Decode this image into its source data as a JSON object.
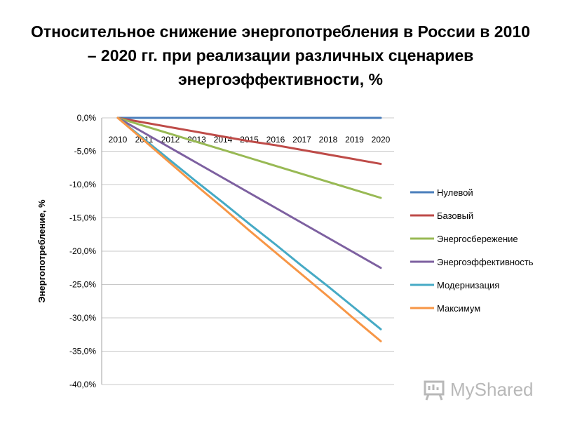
{
  "chart_data": {
    "type": "line",
    "title": "Относительное снижение энергопотребления в России в 2010 – 2020 гг. при реализации различных сценариев энергоэффективности, %",
    "xlabel": "",
    "ylabel": "Энергопотребление, %",
    "categories": [
      "2010",
      "2011",
      "2012",
      "2013",
      "2014",
      "2015",
      "2016",
      "2017",
      "2018",
      "2019",
      "2020"
    ],
    "ylim": [
      -40,
      0
    ],
    "yticks": [
      0,
      -5,
      -10,
      -15,
      -20,
      -25,
      -30,
      -35,
      -40
    ],
    "ytick_labels": [
      "0,0%",
      "-5,0%",
      "-10,0%",
      "-15,0%",
      "-20,0%",
      "-25,0%",
      "-30,0%",
      "-35,0%",
      "-40,0%"
    ],
    "grid": true,
    "legend_position": "right",
    "series": [
      {
        "name": "Нулевой",
        "color": "#4a7ebb",
        "values": [
          0,
          0,
          0,
          0,
          0,
          0,
          0,
          0,
          0,
          0,
          0
        ]
      },
      {
        "name": "Базовый",
        "color": "#be4b48",
        "values": [
          0,
          -0.7,
          -1.4,
          -2.1,
          -2.8,
          -3.5,
          -4.1,
          -4.8,
          -5.5,
          -6.2,
          -6.9
        ]
      },
      {
        "name": "Энергосбережение",
        "color": "#98b954",
        "values": [
          0,
          -1.2,
          -2.4,
          -3.6,
          -4.8,
          -6.0,
          -7.2,
          -8.4,
          -9.6,
          -10.8,
          -12.0
        ]
      },
      {
        "name": "Энергоэффективность",
        "color": "#7d60a0",
        "values": [
          0,
          -2.25,
          -4.5,
          -6.75,
          -9.0,
          -11.25,
          -13.5,
          -15.75,
          -18.0,
          -20.25,
          -22.5
        ]
      },
      {
        "name": "Модернизация",
        "color": "#46aac5",
        "values": [
          0,
          -3.2,
          -6.4,
          -9.6,
          -12.7,
          -15.9,
          -19.0,
          -22.2,
          -25.3,
          -28.5,
          -31.7
        ]
      },
      {
        "name": "Максимум",
        "color": "#f79646",
        "values": [
          0,
          -3.4,
          -6.8,
          -10.2,
          -13.5,
          -16.9,
          -20.2,
          -23.5,
          -26.8,
          -30.2,
          -33.5
        ]
      }
    ]
  },
  "watermark": {
    "text": "MyShared",
    "icon": "presentation-board-icon"
  }
}
